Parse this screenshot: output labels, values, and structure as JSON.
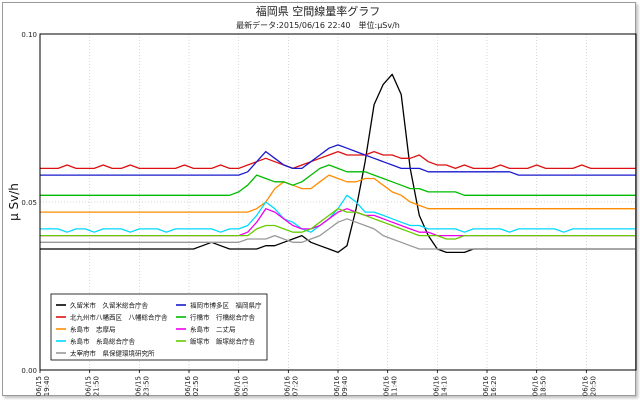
{
  "chart_data": {
    "type": "line",
    "title": "福岡県 空間線量率グラフ",
    "subtitle": "最新データ:2015/06/16 22:40　単位:μSv/h",
    "ylabel": "μ Sv/h",
    "ylim": [
      0.0,
      0.1
    ],
    "yticks": [
      "0.00",
      "0.05",
      "0.10"
    ],
    "x_tick_labels": [
      [
        "06/15",
        "19:40"
      ],
      [
        "06/15",
        "21:50"
      ],
      [
        "06/15",
        "23:50"
      ],
      [
        "06/16",
        "02:50"
      ],
      [
        "06/16",
        "05:10"
      ],
      [
        "06/16",
        "07:20"
      ],
      [
        "06/16",
        "09:40"
      ],
      [
        "06/16",
        "11:40"
      ],
      [
        "06/16",
        "14:10"
      ],
      [
        "06/16",
        "16:20"
      ],
      [
        "06/16",
        "18:50"
      ],
      [
        "06/16",
        "20:50"
      ]
    ],
    "grid": true,
    "legend_position": "bottom-left",
    "series": [
      {
        "name": "久留米市　久留米総合庁舎",
        "color": "#000000",
        "values": [
          0.036,
          0.036,
          0.036,
          0.036,
          0.036,
          0.036,
          0.036,
          0.036,
          0.036,
          0.036,
          0.036,
          0.036,
          0.036,
          0.036,
          0.036,
          0.036,
          0.036,
          0.036,
          0.037,
          0.038,
          0.037,
          0.036,
          0.036,
          0.036,
          0.036,
          0.037,
          0.037,
          0.038,
          0.039,
          0.04,
          0.038,
          0.037,
          0.036,
          0.035,
          0.037,
          0.048,
          0.062,
          0.079,
          0.085,
          0.088,
          0.082,
          0.06,
          0.046,
          0.04,
          0.036,
          0.035,
          0.035,
          0.035,
          0.036,
          0.036,
          0.036,
          0.036,
          0.036,
          0.036,
          0.036,
          0.036,
          0.036,
          0.036,
          0.036,
          0.036,
          0.036,
          0.036,
          0.036,
          0.036,
          0.036,
          0.036,
          0.036
        ]
      },
      {
        "name": "北九州市八幡西区　八幡総合庁舎",
        "color": "#dd1111",
        "values": [
          0.06,
          0.06,
          0.06,
          0.061,
          0.06,
          0.06,
          0.06,
          0.061,
          0.06,
          0.06,
          0.061,
          0.06,
          0.06,
          0.06,
          0.06,
          0.06,
          0.061,
          0.06,
          0.06,
          0.06,
          0.061,
          0.06,
          0.06,
          0.061,
          0.062,
          0.063,
          0.062,
          0.061,
          0.06,
          0.061,
          0.062,
          0.063,
          0.064,
          0.065,
          0.064,
          0.064,
          0.064,
          0.065,
          0.064,
          0.064,
          0.063,
          0.063,
          0.064,
          0.062,
          0.061,
          0.061,
          0.06,
          0.061,
          0.06,
          0.06,
          0.06,
          0.061,
          0.06,
          0.06,
          0.06,
          0.061,
          0.06,
          0.06,
          0.06,
          0.06,
          0.061,
          0.06,
          0.06,
          0.06,
          0.06,
          0.06,
          0.06
        ]
      },
      {
        "name": "糸島市　志摩局",
        "color": "#ff8c00",
        "values": [
          0.047,
          0.047,
          0.047,
          0.047,
          0.047,
          0.047,
          0.047,
          0.047,
          0.047,
          0.047,
          0.047,
          0.047,
          0.047,
          0.047,
          0.047,
          0.047,
          0.047,
          0.047,
          0.047,
          0.047,
          0.047,
          0.047,
          0.047,
          0.047,
          0.048,
          0.05,
          0.054,
          0.056,
          0.055,
          0.054,
          0.054,
          0.056,
          0.058,
          0.057,
          0.056,
          0.056,
          0.057,
          0.057,
          0.055,
          0.053,
          0.052,
          0.05,
          0.049,
          0.048,
          0.048,
          0.048,
          0.048,
          0.048,
          0.048,
          0.048,
          0.048,
          0.048,
          0.048,
          0.048,
          0.048,
          0.048,
          0.048,
          0.048,
          0.048,
          0.048,
          0.048,
          0.048,
          0.048,
          0.048,
          0.048,
          0.048,
          0.048
        ]
      },
      {
        "name": "糸島市　糸島総合庁舎",
        "color": "#00d8ff",
        "values": [
          0.042,
          0.042,
          0.042,
          0.041,
          0.042,
          0.042,
          0.041,
          0.042,
          0.042,
          0.042,
          0.041,
          0.042,
          0.042,
          0.042,
          0.041,
          0.042,
          0.042,
          0.042,
          0.042,
          0.042,
          0.041,
          0.042,
          0.042,
          0.043,
          0.046,
          0.05,
          0.048,
          0.045,
          0.044,
          0.042,
          0.041,
          0.043,
          0.045,
          0.048,
          0.052,
          0.05,
          0.047,
          0.047,
          0.046,
          0.045,
          0.044,
          0.043,
          0.043,
          0.042,
          0.042,
          0.042,
          0.042,
          0.041,
          0.042,
          0.042,
          0.042,
          0.042,
          0.041,
          0.042,
          0.042,
          0.042,
          0.042,
          0.042,
          0.041,
          0.042,
          0.042,
          0.042,
          0.042,
          0.042,
          0.042,
          0.042,
          0.042
        ]
      },
      {
        "name": "太宰府市　県保健環境研究所",
        "color": "#999999",
        "values": [
          0.038,
          0.038,
          0.038,
          0.038,
          0.038,
          0.038,
          0.038,
          0.038,
          0.038,
          0.038,
          0.038,
          0.038,
          0.038,
          0.038,
          0.038,
          0.038,
          0.038,
          0.038,
          0.038,
          0.038,
          0.038,
          0.038,
          0.038,
          0.039,
          0.039,
          0.039,
          0.04,
          0.039,
          0.038,
          0.038,
          0.039,
          0.04,
          0.042,
          0.044,
          0.045,
          0.044,
          0.043,
          0.042,
          0.04,
          0.039,
          0.038,
          0.037,
          0.036,
          0.036,
          0.036,
          0.036,
          0.036,
          0.036,
          0.036,
          0.036,
          0.036,
          0.036,
          0.036,
          0.036,
          0.036,
          0.036,
          0.036,
          0.036,
          0.036,
          0.036,
          0.036,
          0.036,
          0.036,
          0.036,
          0.036,
          0.036,
          0.036
        ]
      },
      {
        "name": "福岡市博多区　福岡県庁",
        "color": "#1a1acc",
        "values": [
          0.058,
          0.058,
          0.058,
          0.058,
          0.058,
          0.058,
          0.058,
          0.058,
          0.058,
          0.058,
          0.058,
          0.058,
          0.058,
          0.058,
          0.058,
          0.058,
          0.058,
          0.058,
          0.058,
          0.058,
          0.058,
          0.058,
          0.058,
          0.059,
          0.062,
          0.065,
          0.063,
          0.061,
          0.06,
          0.06,
          0.062,
          0.064,
          0.066,
          0.067,
          0.066,
          0.065,
          0.064,
          0.063,
          0.062,
          0.061,
          0.06,
          0.06,
          0.06,
          0.059,
          0.059,
          0.059,
          0.059,
          0.059,
          0.059,
          0.059,
          0.059,
          0.059,
          0.059,
          0.058,
          0.058,
          0.058,
          0.058,
          0.058,
          0.058,
          0.058,
          0.058,
          0.058,
          0.058,
          0.058,
          0.058,
          0.058,
          0.058
        ]
      },
      {
        "name": "行橋市　行橋総合庁舎",
        "color": "#00bb00",
        "values": [
          0.052,
          0.052,
          0.052,
          0.052,
          0.052,
          0.052,
          0.052,
          0.052,
          0.052,
          0.052,
          0.052,
          0.052,
          0.052,
          0.052,
          0.052,
          0.052,
          0.052,
          0.052,
          0.052,
          0.052,
          0.052,
          0.052,
          0.053,
          0.055,
          0.058,
          0.057,
          0.056,
          0.056,
          0.055,
          0.056,
          0.058,
          0.06,
          0.061,
          0.06,
          0.059,
          0.059,
          0.059,
          0.058,
          0.057,
          0.056,
          0.055,
          0.054,
          0.054,
          0.053,
          0.053,
          0.053,
          0.053,
          0.052,
          0.052,
          0.052,
          0.052,
          0.052,
          0.052,
          0.052,
          0.052,
          0.052,
          0.052,
          0.052,
          0.052,
          0.052,
          0.052,
          0.052,
          0.052,
          0.052,
          0.052,
          0.052,
          0.052
        ]
      },
      {
        "name": "糸島市　二丈局",
        "color": "#ee00ee",
        "values": [
          0.04,
          0.04,
          0.04,
          0.04,
          0.04,
          0.04,
          0.04,
          0.04,
          0.04,
          0.04,
          0.04,
          0.04,
          0.04,
          0.04,
          0.04,
          0.04,
          0.04,
          0.04,
          0.04,
          0.04,
          0.04,
          0.04,
          0.04,
          0.041,
          0.044,
          0.048,
          0.047,
          0.045,
          0.043,
          0.042,
          0.042,
          0.043,
          0.045,
          0.047,
          0.048,
          0.047,
          0.046,
          0.046,
          0.045,
          0.044,
          0.043,
          0.042,
          0.041,
          0.041,
          0.04,
          0.04,
          0.04,
          0.04,
          0.04,
          0.04,
          0.04,
          0.04,
          0.04,
          0.04,
          0.04,
          0.04,
          0.04,
          0.04,
          0.04,
          0.04,
          0.04,
          0.04,
          0.04,
          0.04,
          0.04,
          0.04,
          0.04
        ]
      },
      {
        "name": "飯塚市　飯塚総合庁舎",
        "color": "#66cc00",
        "values": [
          0.04,
          0.04,
          0.04,
          0.04,
          0.04,
          0.04,
          0.04,
          0.04,
          0.04,
          0.04,
          0.04,
          0.04,
          0.04,
          0.04,
          0.04,
          0.04,
          0.04,
          0.04,
          0.04,
          0.04,
          0.04,
          0.04,
          0.04,
          0.04,
          0.042,
          0.043,
          0.043,
          0.042,
          0.041,
          0.041,
          0.042,
          0.044,
          0.046,
          0.048,
          0.047,
          0.047,
          0.046,
          0.045,
          0.044,
          0.043,
          0.042,
          0.041,
          0.04,
          0.04,
          0.04,
          0.039,
          0.039,
          0.04,
          0.04,
          0.04,
          0.04,
          0.04,
          0.04,
          0.04,
          0.04,
          0.04,
          0.04,
          0.04,
          0.04,
          0.04,
          0.04,
          0.04,
          0.04,
          0.04,
          0.04,
          0.04,
          0.04
        ]
      }
    ]
  }
}
